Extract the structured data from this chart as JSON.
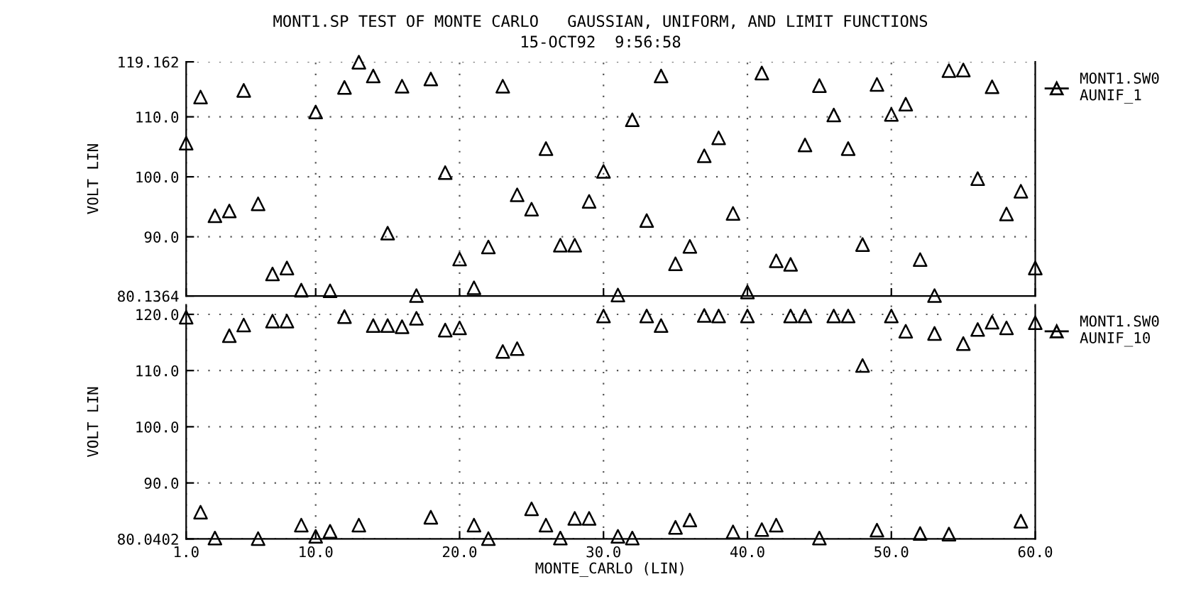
{
  "chart_data": [
    {
      "type": "scatter",
      "title": "MONT1.SP TEST OF MONTE CARLO   GAUSSIAN, UNIFORM, AND LIMIT FUNCTIONS",
      "subtitle": "15-OCT92  9:56:58",
      "ylabel": "VOLT LIN",
      "x": [
        1,
        2,
        3,
        4,
        5,
        6,
        7,
        8,
        9,
        10,
        11,
        12,
        13,
        14,
        15,
        16,
        17,
        18,
        19,
        20,
        21,
        22,
        23,
        24,
        25,
        26,
        27,
        28,
        29,
        30,
        31,
        32,
        33,
        34,
        35,
        36,
        37,
        38,
        39,
        40,
        41,
        42,
        43,
        44,
        45,
        46,
        47,
        48,
        49,
        50,
        51,
        52,
        53,
        54,
        55,
        56,
        57,
        58,
        59,
        60
      ],
      "series": [
        {
          "name": "MONT1.SW0\nAUNIF_1",
          "color": "#000000",
          "values": [
            105.6,
            113.3,
            93.5,
            94.3,
            114.4,
            95.5,
            83.8,
            84.8,
            81.1,
            110.8,
            81.0,
            114.9,
            119.1,
            116.8,
            90.6,
            115.1,
            80.2,
            116.3,
            100.7,
            86.3,
            81.5,
            88.3,
            115.1,
            97.0,
            94.6,
            104.7,
            88.6,
            88.6,
            95.9,
            100.9,
            80.3,
            109.5,
            92.7,
            116.8,
            85.5,
            88.4,
            103.5,
            106.5,
            93.9,
            80.8,
            117.3,
            86.0,
            85.4,
            105.3,
            115.2,
            110.3,
            104.7,
            88.7,
            115.4,
            110.4,
            112.1,
            86.2,
            80.2,
            117.7,
            117.8,
            99.7,
            115.0,
            93.8,
            97.6,
            84.8
          ]
        }
      ],
      "xlim": [
        1,
        60
      ],
      "xticks": [
        {
          "value": 1,
          "label": null
        },
        {
          "value": 10,
          "label": null
        },
        {
          "value": 20,
          "label": null
        },
        {
          "value": 30,
          "label": null
        },
        {
          "value": 40,
          "label": null
        },
        {
          "value": 50,
          "label": null
        },
        {
          "value": 60,
          "label": null
        }
      ],
      "ylim": [
        80.1364,
        119.162
      ],
      "yticks": [
        {
          "value": 80.1364,
          "label": "80.1364"
        },
        {
          "value": 90,
          "label": "90.0"
        },
        {
          "value": 100,
          "label": "100.0"
        },
        {
          "value": 110,
          "label": "110.0"
        },
        {
          "value": 119.162,
          "label": "119.162"
        }
      ],
      "tick_labels": "y",
      "grid": true,
      "legend": "right",
      "marker": "triangle"
    },
    {
      "type": "scatter",
      "xlabel": "MONTE_CARLO (LIN)",
      "ylabel": "VOLT LIN",
      "x": [
        1,
        2,
        3,
        4,
        5,
        6,
        7,
        8,
        9,
        10,
        11,
        12,
        13,
        14,
        15,
        16,
        17,
        18,
        19,
        20,
        21,
        22,
        23,
        24,
        25,
        26,
        27,
        28,
        29,
        30,
        31,
        32,
        33,
        34,
        35,
        36,
        37,
        38,
        39,
        40,
        41,
        42,
        43,
        44,
        45,
        46,
        47,
        48,
        49,
        50,
        51,
        52,
        53,
        54,
        55,
        56,
        57,
        58,
        59,
        60
      ],
      "series": [
        {
          "name": "MONT1.SW0\nAUNIF_10",
          "color": "#000000",
          "values": [
            119.5,
            84.8,
            80.2,
            116.2,
            118.1,
            80.1,
            118.8,
            118.8,
            82.5,
            80.5,
            81.4,
            119.6,
            82.5,
            118.0,
            118.0,
            117.8,
            119.3,
            83.9,
            117.2,
            117.6,
            82.5,
            80.1,
            113.4,
            113.9,
            85.4,
            82.5,
            80.2,
            83.7,
            83.7,
            119.7,
            80.5,
            80.2,
            119.7,
            118.0,
            82.1,
            83.4,
            119.8,
            119.7,
            81.3,
            119.7,
            81.7,
            82.5,
            119.7,
            119.7,
            80.2,
            119.7,
            119.7,
            110.9,
            81.6,
            119.7,
            117.0,
            81.0,
            116.6,
            80.9,
            114.8,
            117.3,
            118.6,
            117.6,
            83.2,
            118.5
          ]
        }
      ],
      "xlim": [
        1,
        60
      ],
      "xticks": [
        {
          "value": 1,
          "label": "1.0"
        },
        {
          "value": 10,
          "label": "10.0"
        },
        {
          "value": 20,
          "label": "20.0"
        },
        {
          "value": 30,
          "label": "30.0"
        },
        {
          "value": 40,
          "label": "40.0"
        },
        {
          "value": 50,
          "label": "50.0"
        },
        {
          "value": 60,
          "label": "60.0"
        }
      ],
      "ylim": [
        80.0402,
        121.7
      ],
      "yticks": [
        {
          "value": 80.0402,
          "label": "80.0402"
        },
        {
          "value": 90,
          "label": "90.0"
        },
        {
          "value": 100,
          "label": "100.0"
        },
        {
          "value": 110,
          "label": "110.0"
        },
        {
          "value": 120,
          "label": "120.0"
        }
      ],
      "grid": true,
      "legend": "right",
      "marker": "triangle"
    }
  ]
}
